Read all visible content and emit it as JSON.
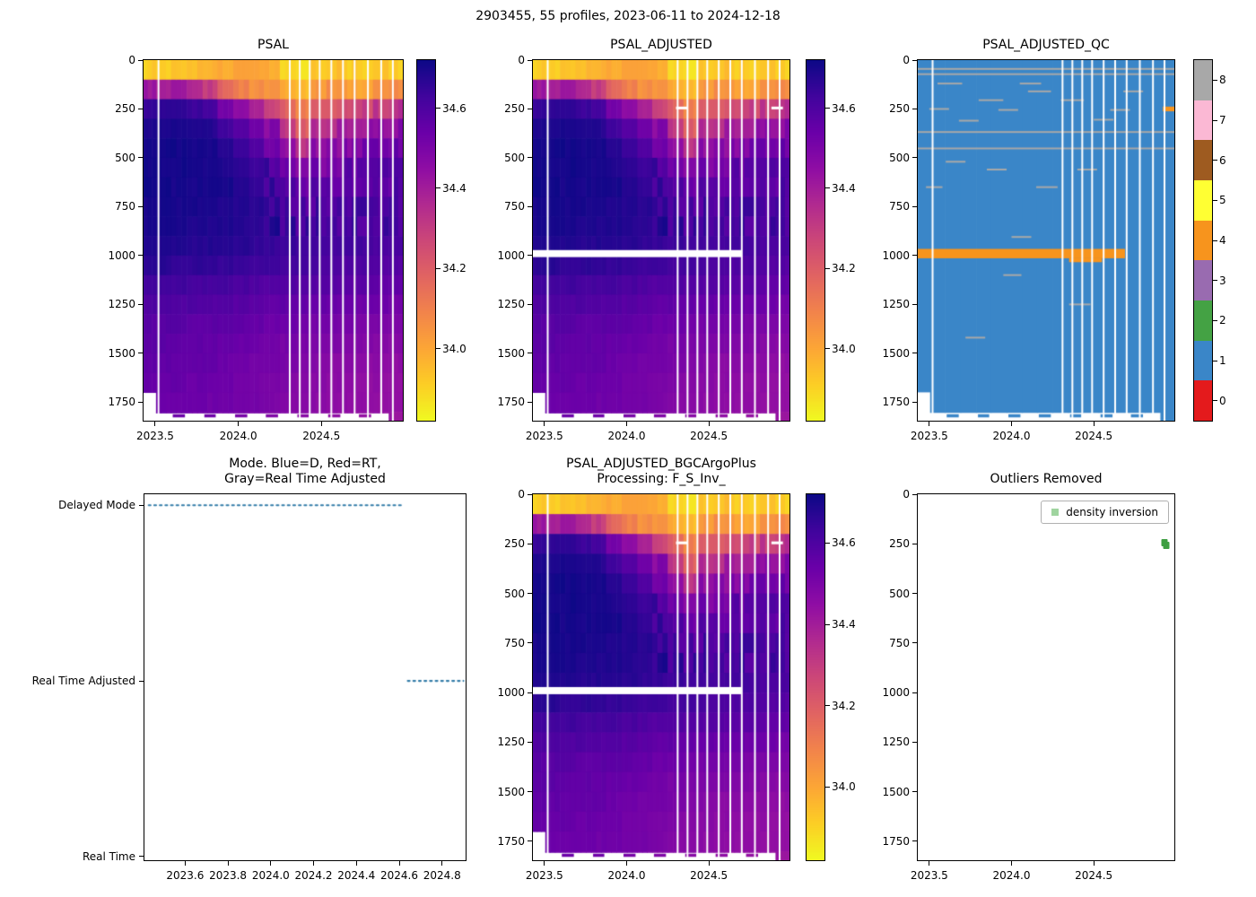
{
  "figure_title": "2903455, 55 profiles, 2023-06-11 to 2024-12-18",
  "colors": {
    "plasma": [
      "#0d0887",
      "#41049d",
      "#6a00a8",
      "#8f0da4",
      "#b12a90",
      "#cc4778",
      "#e16462",
      "#f2844b",
      "#fca636",
      "#fcce25",
      "#f0f921"
    ],
    "qc_palette": [
      "#e41a1c",
      "#3a86c8",
      "#44a244",
      "#996bb0",
      "#f7941d",
      "#ffff33",
      "#9e5b20",
      "#fbb8d4",
      "#a8a8a8"
    ],
    "mode_line": "#337ca8",
    "outlier_point": "#3d9e41",
    "outlier_legend_marker": "#9fd49f",
    "gap_white": "#ffffff"
  },
  "gaps": [
    2023.52,
    2024.31,
    2024.37,
    2024.43,
    2024.49,
    2024.56,
    2024.63,
    2024.7,
    2024.78,
    2024.86,
    2024.93
  ],
  "salinity_grid": {
    "times": [
      2023.46,
      2023.55,
      2023.64,
      2023.74,
      2023.83,
      2023.92,
      2024.02,
      2024.11,
      2024.2,
      2024.3,
      2024.39,
      2024.48,
      2024.58,
      2024.67,
      2024.76,
      2024.86,
      2024.95
    ],
    "depths": [
      0,
      100,
      200,
      300,
      400,
      500,
      600,
      700,
      800,
      900,
      1000,
      1100,
      1200,
      1300,
      1400,
      1500,
      1600,
      1700,
      1800
    ],
    "values": [
      [
        33.92,
        34.42,
        34.65,
        34.69,
        34.71,
        34.71,
        34.71,
        34.7,
        34.7,
        34.69,
        34.67,
        34.63,
        34.6,
        34.58,
        34.57,
        34.56,
        34.55,
        34.54,
        34.54
      ],
      [
        33.9,
        34.38,
        34.66,
        34.7,
        34.71,
        34.71,
        34.71,
        34.7,
        34.7,
        34.69,
        34.67,
        34.63,
        34.6,
        34.58,
        34.57,
        34.56,
        34.55,
        34.54,
        34.54
      ],
      [
        33.94,
        34.4,
        34.66,
        34.7,
        34.71,
        34.71,
        34.7,
        34.7,
        34.7,
        34.69,
        34.66,
        34.63,
        34.6,
        34.58,
        34.56,
        34.55,
        34.55,
        34.54,
        34.54
      ],
      [
        33.96,
        34.35,
        34.64,
        34.69,
        34.7,
        34.71,
        34.7,
        34.7,
        34.69,
        34.68,
        34.66,
        34.62,
        34.6,
        34.57,
        34.56,
        34.55,
        34.54,
        34.54,
        34.53
      ],
      [
        33.97,
        34.3,
        34.62,
        34.68,
        34.7,
        34.7,
        34.7,
        34.7,
        34.69,
        34.68,
        34.66,
        34.62,
        34.59,
        34.57,
        34.56,
        34.55,
        34.54,
        34.53,
        34.53
      ],
      [
        33.98,
        34.18,
        34.52,
        34.63,
        34.67,
        34.69,
        34.7,
        34.69,
        34.69,
        34.68,
        34.65,
        34.62,
        34.59,
        34.57,
        34.55,
        34.54,
        34.53,
        34.53,
        34.52
      ],
      [
        34.0,
        34.1,
        34.45,
        34.58,
        34.64,
        34.67,
        34.68,
        34.68,
        34.68,
        34.67,
        34.64,
        34.61,
        34.58,
        34.56,
        34.54,
        34.53,
        34.52,
        34.52,
        34.51
      ],
      [
        34.02,
        34.06,
        34.38,
        34.52,
        34.6,
        34.64,
        34.66,
        34.67,
        34.67,
        34.66,
        34.64,
        34.6,
        34.57,
        34.55,
        34.53,
        34.52,
        34.51,
        34.51,
        34.5
      ],
      [
        33.98,
        34.05,
        34.3,
        34.46,
        34.56,
        34.61,
        34.64,
        34.65,
        34.66,
        34.65,
        34.63,
        34.59,
        34.56,
        34.54,
        34.52,
        34.51,
        34.5,
        34.5,
        34.49
      ],
      [
        33.9,
        34.0,
        34.18,
        34.32,
        34.44,
        34.52,
        34.58,
        34.62,
        34.64,
        34.64,
        34.62,
        34.59,
        34.56,
        34.53,
        34.51,
        34.5,
        34.49,
        34.48,
        34.48
      ],
      [
        33.87,
        33.96,
        34.08,
        34.18,
        34.32,
        34.46,
        34.55,
        34.6,
        34.62,
        34.63,
        34.62,
        34.58,
        34.55,
        34.52,
        34.5,
        34.49,
        34.48,
        34.47,
        34.47
      ],
      [
        33.93,
        34.04,
        34.2,
        34.34,
        34.45,
        34.52,
        34.58,
        34.61,
        34.63,
        34.63,
        34.61,
        34.58,
        34.55,
        34.52,
        34.5,
        34.48,
        34.47,
        34.46,
        34.46
      ],
      [
        33.95,
        34.06,
        34.24,
        34.38,
        34.47,
        34.53,
        34.58,
        34.61,
        34.62,
        34.62,
        34.61,
        34.58,
        34.54,
        34.51,
        34.49,
        34.47,
        34.46,
        34.46,
        34.45
      ],
      [
        33.92,
        34.02,
        34.26,
        34.4,
        34.49,
        34.55,
        34.59,
        34.61,
        34.62,
        34.62,
        34.6,
        34.57,
        34.54,
        34.51,
        34.48,
        34.47,
        34.46,
        34.45,
        34.45
      ],
      [
        33.9,
        34.0,
        34.28,
        34.42,
        34.5,
        34.55,
        34.59,
        34.61,
        34.62,
        34.62,
        34.6,
        34.57,
        34.53,
        34.5,
        34.48,
        34.46,
        34.45,
        34.45,
        34.44
      ],
      [
        33.93,
        34.05,
        34.3,
        34.43,
        34.51,
        34.56,
        34.59,
        34.61,
        34.62,
        34.61,
        34.59,
        34.56,
        34.53,
        34.5,
        34.47,
        34.46,
        34.45,
        34.44,
        34.44
      ],
      [
        33.91,
        34.08,
        34.34,
        34.46,
        34.52,
        34.56,
        34.59,
        34.61,
        34.61,
        34.61,
        34.59,
        34.56,
        34.52,
        34.49,
        34.47,
        34.45,
        34.44,
        34.44,
        34.43
      ]
    ],
    "bottom_default": 1805,
    "bottom_first": 1700,
    "bottom_last": 1845,
    "bottom_dashes": {
      "d0": 1812,
      "d1": 1828
    }
  },
  "chart_data": [
    {
      "id": "psal",
      "type": "heatmap",
      "title": "PSAL",
      "colormap": "plasma_r",
      "x_range": [
        2023.43,
        2024.99
      ],
      "y_range": [
        0,
        1845
      ],
      "x_ticks": [
        2023.5,
        2024.0,
        2024.5
      ],
      "y_ticks": [
        0,
        250,
        500,
        750,
        1000,
        1250,
        1500,
        1750
      ],
      "vmin": 33.82,
      "vmax": 34.72,
      "colorbar_ticks": [
        34.6,
        34.4,
        34.2,
        34.0
      ],
      "grid_ref": "salinity_grid"
    },
    {
      "id": "psal_adjusted",
      "type": "heatmap",
      "title": "PSAL_ADJUSTED",
      "colormap": "plasma_r",
      "x_range": [
        2023.43,
        2024.99
      ],
      "y_range": [
        0,
        1845
      ],
      "x_ticks": [
        2023.5,
        2024.0,
        2024.5
      ],
      "y_ticks": [
        0,
        250,
        500,
        750,
        1000,
        1250,
        1500,
        1750
      ],
      "vmin": 33.82,
      "vmax": 34.72,
      "colorbar_ticks": [
        34.6,
        34.4,
        34.2,
        34.0
      ],
      "grid_ref": "salinity_grid",
      "white_bands": [
        {
          "t0": 2023.43,
          "t1": 2024.7,
          "d0": 972,
          "d1": 1008
        }
      ],
      "white_dashes": [
        {
          "t0": 2024.3,
          "t1": 2024.37,
          "d0": 238,
          "d1": 252
        },
        {
          "t0": 2024.88,
          "t1": 2024.95,
          "d0": 238,
          "d1": 252
        }
      ]
    },
    {
      "id": "psal_adjusted_qc",
      "type": "heatmap",
      "title": "PSAL_ADJUSTED_QC",
      "x_range": [
        2023.43,
        2024.99
      ],
      "y_range": [
        0,
        1845
      ],
      "x_ticks": [
        2023.5,
        2024.0,
        2024.5
      ],
      "y_ticks": [
        0,
        250,
        500,
        750,
        1000,
        1250,
        1500,
        1750
      ],
      "base_value": 1,
      "colorbar_labels": [
        0,
        1,
        2,
        3,
        4,
        5,
        6,
        7,
        8
      ],
      "grid_ref": "salinity_grid",
      "orange_band": {
        "t0": 2023.43,
        "t1": 2024.69,
        "d0": 966,
        "d1": 1014
      },
      "orange_dashes": [
        [
          2024.92,
          2024.99,
          238,
          262
        ],
        [
          2024.35,
          2024.55,
          1014,
          1034
        ]
      ],
      "gray_segments": [
        [
          2023.43,
          2024.99,
          45
        ],
        [
          2023.43,
          2024.99,
          72
        ],
        [
          2023.43,
          2024.99,
          368
        ],
        [
          2023.43,
          2024.99,
          452
        ],
        [
          2023.55,
          2023.7,
          120
        ],
        [
          2023.8,
          2023.95,
          205
        ],
        [
          2023.5,
          2023.62,
          250
        ],
        [
          2023.68,
          2023.8,
          310
        ],
        [
          2023.92,
          2024.04,
          255
        ],
        [
          2024.1,
          2024.24,
          160
        ],
        [
          2024.15,
          2024.28,
          650
        ],
        [
          2023.6,
          2023.72,
          520
        ],
        [
          2023.85,
          2023.97,
          560
        ],
        [
          2024.0,
          2024.12,
          905
        ],
        [
          2023.95,
          2024.06,
          1100
        ],
        [
          2024.3,
          2024.44,
          205
        ],
        [
          2024.5,
          2024.62,
          305
        ],
        [
          2024.6,
          2024.72,
          255
        ],
        [
          2024.35,
          2024.48,
          1250
        ],
        [
          2023.72,
          2023.84,
          1420
        ],
        [
          2024.05,
          2024.18,
          120
        ],
        [
          2024.4,
          2024.52,
          560
        ],
        [
          2023.48,
          2023.58,
          650
        ],
        [
          2024.68,
          2024.8,
          160
        ]
      ]
    },
    {
      "id": "mode",
      "type": "line",
      "title_lines": [
        "Mode. Blue=D, Red=RT,",
        "Gray=Real Time Adjusted"
      ],
      "x_range": [
        2023.41,
        2024.91
      ],
      "x_ticks": [
        2023.6,
        2023.8,
        2024.0,
        2024.2,
        2024.4,
        2024.6,
        2024.8
      ],
      "y_categories": [
        "Delayed Mode",
        "Real Time Adjusted",
        "Real Time"
      ],
      "segments": [
        {
          "category_index": 0,
          "x0": 2023.43,
          "x1": 2024.62
        },
        {
          "category_index": 1,
          "x0": 2024.64,
          "x1": 2024.9
        }
      ],
      "line_style": "dotted"
    },
    {
      "id": "psal_bgc",
      "type": "heatmap",
      "title_lines": [
        "PSAL_ADJUSTED_BGCArgoPlus",
        "Processing: F_S_Inv_"
      ],
      "colormap": "plasma_r",
      "x_range": [
        2023.43,
        2024.99
      ],
      "y_range": [
        0,
        1845
      ],
      "x_ticks": [
        2023.5,
        2024.0,
        2024.5
      ],
      "y_ticks": [
        0,
        250,
        500,
        750,
        1000,
        1250,
        1500,
        1750
      ],
      "vmin": 33.82,
      "vmax": 34.72,
      "colorbar_ticks": [
        34.6,
        34.4,
        34.2,
        34.0
      ],
      "grid_ref": "salinity_grid",
      "white_bands": [
        {
          "t0": 2023.43,
          "t1": 2024.7,
          "d0": 972,
          "d1": 1008
        }
      ],
      "white_dashes": [
        {
          "t0": 2024.3,
          "t1": 2024.37,
          "d0": 238,
          "d1": 252
        },
        {
          "t0": 2024.88,
          "t1": 2024.95,
          "d0": 238,
          "d1": 252
        }
      ]
    },
    {
      "id": "outliers",
      "type": "scatter",
      "title": "Outliers Removed",
      "x_range": [
        2023.43,
        2024.99
      ],
      "y_range": [
        0,
        1845
      ],
      "x_ticks": [
        2023.5,
        2024.0,
        2024.5
      ],
      "y_ticks": [
        0,
        250,
        500,
        750,
        1000,
        1250,
        1500,
        1750
      ],
      "legend": {
        "label": "density inversion"
      },
      "points": [
        {
          "x": 2024.93,
          "y": 242
        },
        {
          "x": 2024.94,
          "y": 259
        }
      ]
    }
  ]
}
